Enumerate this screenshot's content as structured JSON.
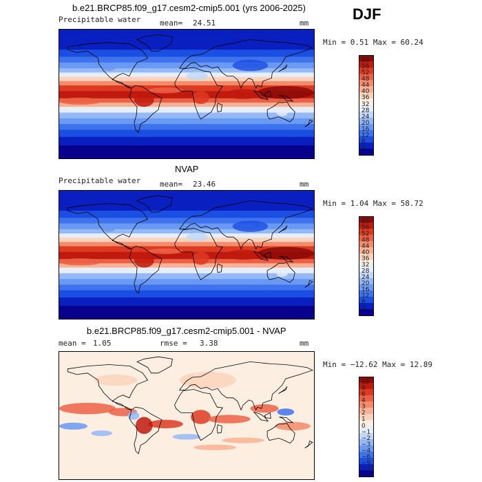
{
  "season": "DJF",
  "palette_pw": [
    "#08008c",
    "#0a1fc0",
    "#1b4ee2",
    "#3f73ee",
    "#6a99f3",
    "#95b9f6",
    "#c1d8f8",
    "#e6eefb",
    "#fdeee2",
    "#fbd2bc",
    "#f9b193",
    "#f48b6a",
    "#ec6145",
    "#dd3a22",
    "#c01a0e",
    "#8c0a06"
  ],
  "palette_diff": [
    "#07008c",
    "#0a1fc0",
    "#1b4ee2",
    "#3f73ee",
    "#6a99f3",
    "#95b9f6",
    "#c1d8f8",
    "#e6eefb",
    "#fdeee2",
    "#fbd2bc",
    "#f9b193",
    "#f48b6a",
    "#ec6145",
    "#dd3a22",
    "#c01a0e",
    "#8c0a06"
  ],
  "chart_data": [
    {
      "type": "heatmap",
      "title": "b.e21.BRCP85.f09_g17.cesm2-cmip5.001 (yrs 2006-2025)",
      "left_label": "Precipitable water",
      "stat_label": "mean=",
      "stat_value": "24.51",
      "units": "mm",
      "range_text": "Min =    0.51 Max =   60.24",
      "colorbar_levels": [
        "60",
        "56",
        "52",
        "48",
        "44",
        "40",
        "36",
        "32",
        "28",
        "24",
        "20",
        "16",
        "12",
        "8",
        "4"
      ]
    },
    {
      "type": "heatmap",
      "title": "NVAP",
      "left_label": "Precipitable water",
      "stat_label": "mean=",
      "stat_value": "23.46",
      "units": "mm",
      "range_text": "Min =    1.04 Max =   58.72",
      "colorbar_levels": [
        "60",
        "56",
        "52",
        "48",
        "44",
        "40",
        "36",
        "32",
        "28",
        "24",
        "20",
        "16",
        "12",
        "8",
        "4"
      ]
    },
    {
      "type": "heatmap",
      "title": "b.e21.BRCP85.f09_g17.cesm2-cmip5.001 - NVAP",
      "left_label": "mean =",
      "left_value": "1.05",
      "stat_label": "rmse =",
      "stat_value": "3.38",
      "units": "mm",
      "range_text": "Min = −12.62 Max =   12.89",
      "colorbar_levels": [
        "12",
        "9",
        "6",
        "4",
        "3",
        "2",
        "1",
        "0",
        "−1",
        "−2",
        "−3",
        "−4",
        "−6",
        "−9",
        "−12"
      ]
    }
  ]
}
